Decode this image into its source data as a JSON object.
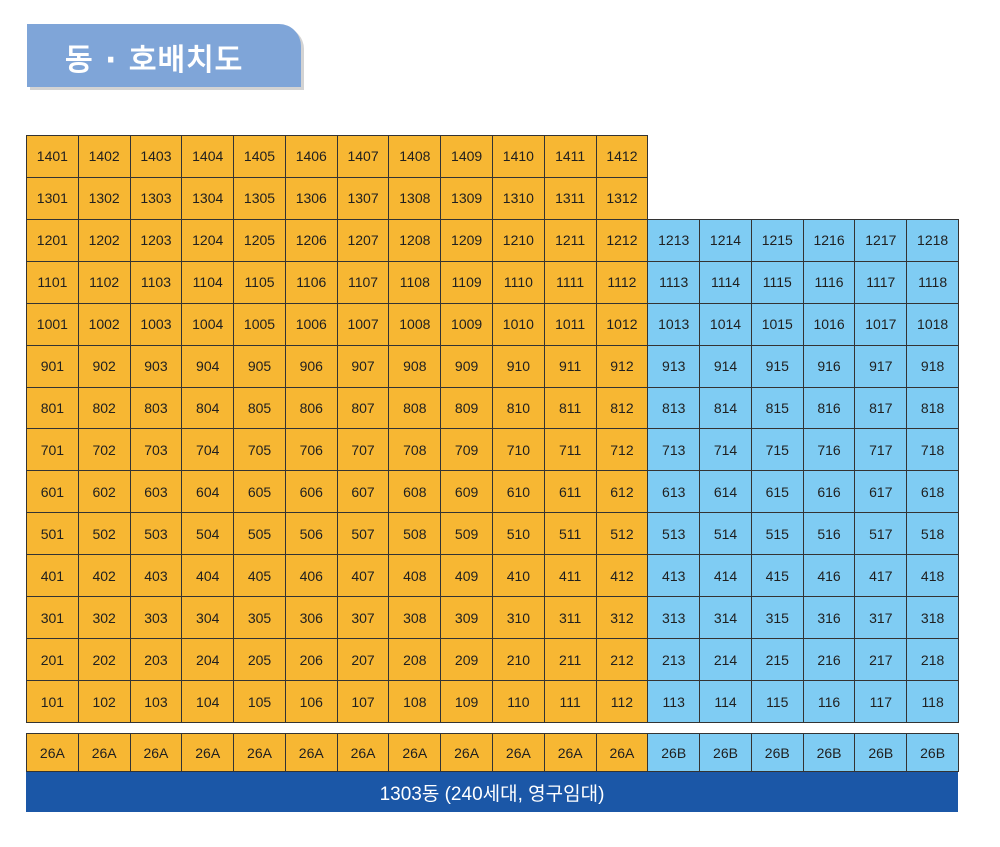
{
  "title": "동 · 호배치도",
  "colors": {
    "type_A": "#f7b733",
    "type_B": "#7fccf3",
    "footer": "#1b57a7",
    "tab": "#7fa5d8"
  },
  "units": [
    [
      "1401",
      "1402",
      "1403",
      "1404",
      "1405",
      "1406",
      "1407",
      "1408",
      "1409",
      "1410",
      "1411",
      "1412",
      "",
      "",
      "",
      "",
      "",
      ""
    ],
    [
      "1301",
      "1302",
      "1303",
      "1304",
      "1305",
      "1306",
      "1307",
      "1308",
      "1309",
      "1310",
      "1311",
      "1312",
      "",
      "",
      "",
      "",
      "",
      ""
    ],
    [
      "1201",
      "1202",
      "1203",
      "1204",
      "1205",
      "1206",
      "1207",
      "1208",
      "1209",
      "1210",
      "1211",
      "1212",
      "1213",
      "1214",
      "1215",
      "1216",
      "1217",
      "1218"
    ],
    [
      "1101",
      "1102",
      "1103",
      "1104",
      "1105",
      "1106",
      "1107",
      "1108",
      "1109",
      "1110",
      "1111",
      "1112",
      "1113",
      "1114",
      "1115",
      "1116",
      "1117",
      "1118"
    ],
    [
      "1001",
      "1002",
      "1003",
      "1004",
      "1005",
      "1006",
      "1007",
      "1008",
      "1009",
      "1010",
      "1011",
      "1012",
      "1013",
      "1014",
      "1015",
      "1016",
      "1017",
      "1018"
    ],
    [
      "901",
      "902",
      "903",
      "904",
      "905",
      "906",
      "907",
      "908",
      "909",
      "910",
      "911",
      "912",
      "913",
      "914",
      "915",
      "916",
      "917",
      "918"
    ],
    [
      "801",
      "802",
      "803",
      "804",
      "805",
      "806",
      "807",
      "808",
      "809",
      "810",
      "811",
      "812",
      "813",
      "814",
      "815",
      "816",
      "817",
      "818"
    ],
    [
      "701",
      "702",
      "703",
      "704",
      "705",
      "706",
      "707",
      "708",
      "709",
      "710",
      "711",
      "712",
      "713",
      "714",
      "715",
      "716",
      "717",
      "718"
    ],
    [
      "601",
      "602",
      "603",
      "604",
      "605",
      "606",
      "607",
      "608",
      "609",
      "610",
      "611",
      "612",
      "613",
      "614",
      "615",
      "616",
      "617",
      "618"
    ],
    [
      "501",
      "502",
      "503",
      "504",
      "505",
      "506",
      "507",
      "508",
      "509",
      "510",
      "511",
      "512",
      "513",
      "514",
      "515",
      "516",
      "517",
      "518"
    ],
    [
      "401",
      "402",
      "403",
      "404",
      "405",
      "406",
      "407",
      "408",
      "409",
      "410",
      "411",
      "412",
      "413",
      "414",
      "415",
      "416",
      "417",
      "418"
    ],
    [
      "301",
      "302",
      "303",
      "304",
      "305",
      "306",
      "307",
      "308",
      "309",
      "310",
      "311",
      "312",
      "313",
      "314",
      "315",
      "316",
      "317",
      "318"
    ],
    [
      "201",
      "202",
      "203",
      "204",
      "205",
      "206",
      "207",
      "208",
      "209",
      "210",
      "211",
      "212",
      "213",
      "214",
      "215",
      "216",
      "217",
      "218"
    ],
    [
      "101",
      "102",
      "103",
      "104",
      "105",
      "106",
      "107",
      "108",
      "109",
      "110",
      "111",
      "112",
      "113",
      "114",
      "115",
      "116",
      "117",
      "118"
    ]
  ],
  "types": [
    "26A",
    "26A",
    "26A",
    "26A",
    "26A",
    "26A",
    "26A",
    "26A",
    "26A",
    "26A",
    "26A",
    "26A",
    "26B",
    "26B",
    "26B",
    "26B",
    "26B",
    "26B"
  ],
  "footer": "1303동 (240세대, 영구임대)"
}
